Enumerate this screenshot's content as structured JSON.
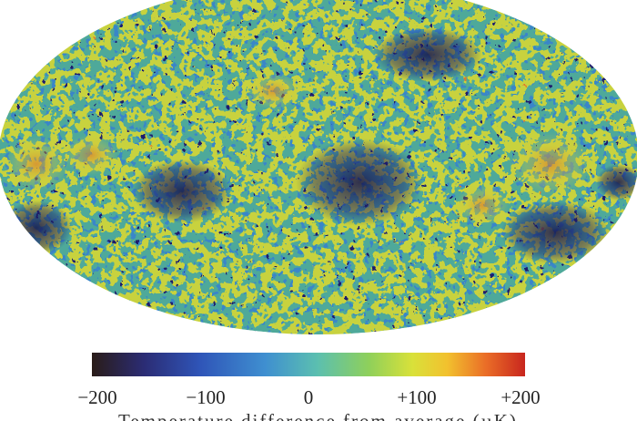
{
  "colors": {
    "background": "#ffffff",
    "cold": "#1e1b6e",
    "cool": "#3f8fd0",
    "mid": "#4aa99a",
    "warm": "#c9d43c",
    "hot": "#e0522a"
  },
  "map": {
    "projection": "mollweide",
    "subject": "temperature-fluctuation-sky-map"
  },
  "colorbar": {
    "ticks": [
      "−200",
      "−100",
      "0",
      "+100",
      "+200"
    ],
    "range": [
      -200,
      200
    ],
    "gradient": [
      "#2a1c18",
      "#2b2c74",
      "#2f55b8",
      "#3f8fd0",
      "#5bbfb0",
      "#8fd05a",
      "#d9e13a",
      "#f2c12e",
      "#ea6d27",
      "#c8261e"
    ],
    "axis_title": "Temperature difference from average (µK)"
  }
}
